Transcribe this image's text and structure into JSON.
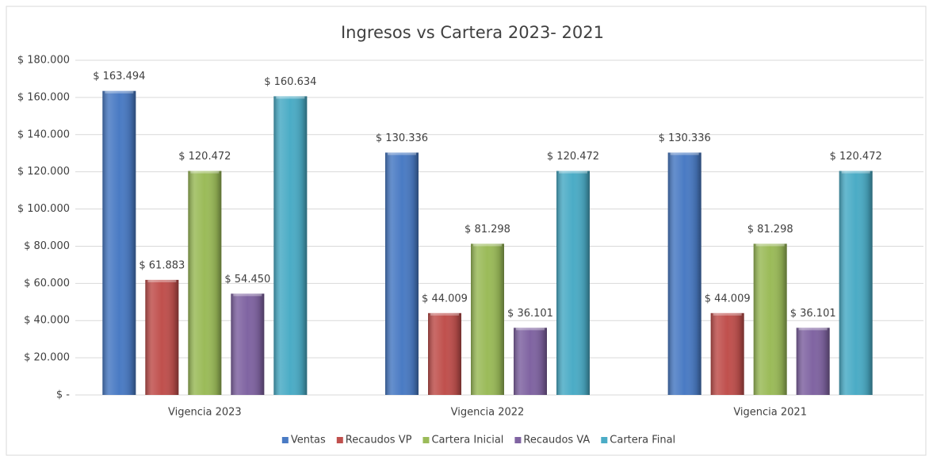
{
  "chart_data": {
    "type": "bar",
    "title": "Ingresos vs Cartera 2023- 2021",
    "categories": [
      "Vigencia 2023",
      "Vigencia 2022",
      "Vigencia 2021"
    ],
    "series": [
      {
        "name": "Ventas",
        "color": "#4a7bc4",
        "values": [
          163494,
          130336,
          130336
        ],
        "value_labels": [
          "$ 163.494",
          "$ 130.336",
          "$ 130.336"
        ]
      },
      {
        "name": "Recaudos VP",
        "color": "#c0504d",
        "values": [
          61883,
          44009,
          44009
        ],
        "value_labels": [
          "$ 61.883",
          "$ 44.009",
          "$ 44.009"
        ]
      },
      {
        "name": "Cartera Inicial",
        "color": "#9bbb59",
        "values": [
          120472,
          81298,
          81298
        ],
        "value_labels": [
          "$ 120.472",
          "$ 81.298",
          "$ 81.298"
        ]
      },
      {
        "name": "Recaudos VA",
        "color": "#8064a2",
        "values": [
          54450,
          36101,
          36101
        ],
        "value_labels": [
          "$ 54.450",
          "$ 36.101",
          "$ 36.101"
        ]
      },
      {
        "name": "Cartera Final",
        "color": "#4bacc6",
        "values": [
          160634,
          120472,
          120472
        ],
        "value_labels": [
          "$ 160.634",
          "$ 120.472",
          "$ 120.472"
        ]
      }
    ],
    "ylim": [
      0,
      180000
    ],
    "yticks": [
      {
        "value": 0,
        "label": "$ -"
      },
      {
        "value": 20000,
        "label": "$ 20.000"
      },
      {
        "value": 40000,
        "label": "$ 40.000"
      },
      {
        "value": 60000,
        "label": "$ 60.000"
      },
      {
        "value": 80000,
        "label": "$ 80.000"
      },
      {
        "value": 100000,
        "label": "$ 100.000"
      },
      {
        "value": 120000,
        "label": "$ 120.000"
      },
      {
        "value": 140000,
        "label": "$ 140.000"
      },
      {
        "value": 160000,
        "label": "$ 160.000"
      },
      {
        "value": 180000,
        "label": "$ 180.000"
      }
    ],
    "grid": true,
    "legend": "bottom"
  }
}
